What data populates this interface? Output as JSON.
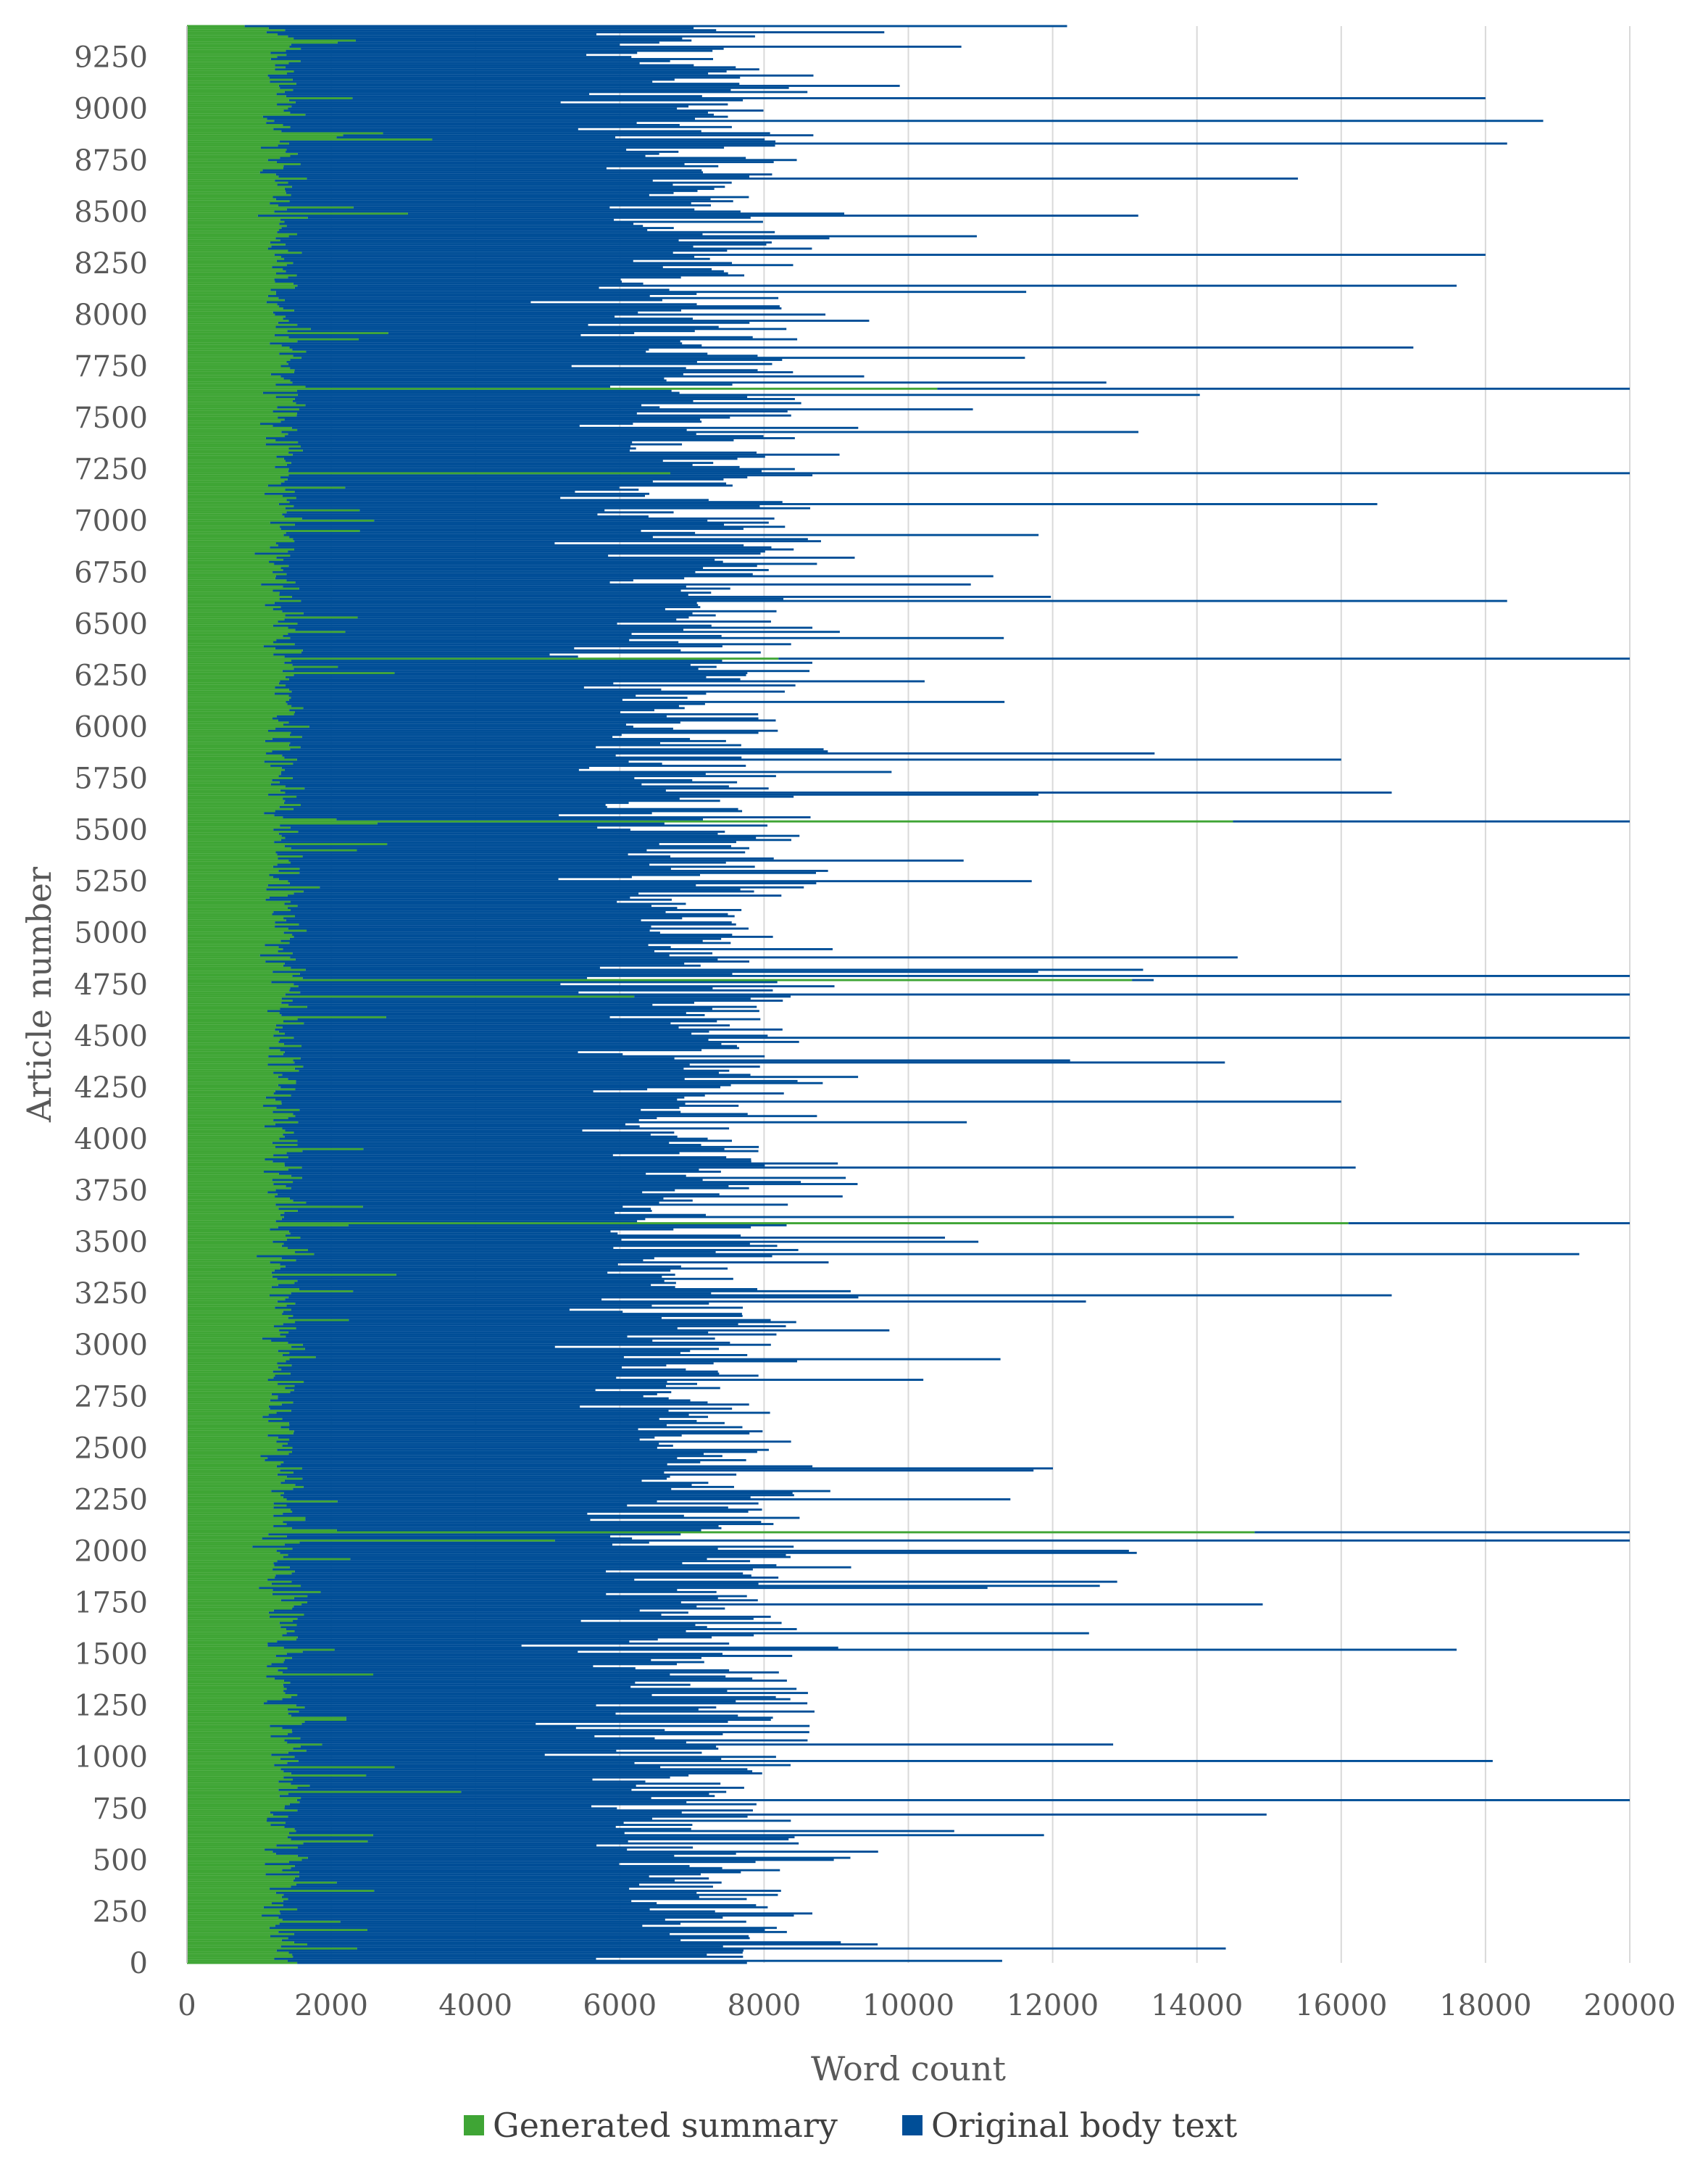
{
  "chart_data": {
    "type": "bar",
    "orientation": "horizontal",
    "stacked": true,
    "xlabel": "Word count",
    "ylabel": "Article number",
    "xlim": [
      0,
      20000
    ],
    "x_ticks": [
      0,
      2000,
      4000,
      6000,
      8000,
      10000,
      12000,
      14000,
      16000,
      18000,
      20000
    ],
    "x_tick_labels": [
      "0",
      "2000",
      "4000",
      "6000",
      "8000",
      "10000",
      "12000",
      "14000",
      "16000",
      "18000",
      "20000"
    ],
    "ylim": [
      0,
      9400
    ],
    "y_ticks": [
      0,
      250,
      500,
      750,
      1000,
      1250,
      1500,
      1750,
      2000,
      2250,
      2500,
      2750,
      3000,
      3250,
      3500,
      3750,
      4000,
      4250,
      4500,
      4750,
      5000,
      5250,
      5500,
      5750,
      6000,
      6250,
      6500,
      6750,
      7000,
      7250,
      7500,
      7750,
      8000,
      8250,
      8500,
      8750,
      9000,
      9250
    ],
    "y_tick_labels": [
      "0",
      "250",
      "500",
      "750",
      "1000",
      "1250",
      "1500",
      "1750",
      "2000",
      "2250",
      "2500",
      "2750",
      "3000",
      "3250",
      "3500",
      "3750",
      "4000",
      "4250",
      "4500",
      "4750",
      "5000",
      "5250",
      "5500",
      "5750",
      "6000",
      "6250",
      "6500",
      "6750",
      "7000",
      "7250",
      "7500",
      "7750",
      "8000",
      "8250",
      "8500",
      "8750",
      "9000",
      "9250"
    ],
    "grid": "vertical",
    "legend_position": "bottom",
    "series": [
      {
        "name": "Generated summary",
        "color": "#3fa535",
        "typical_range": [
          800,
          3000
        ],
        "notable_values": [
          {
            "article": 9400,
            "value": 800
          },
          {
            "article": 8850,
            "value": 3400
          },
          {
            "article": 7640,
            "value": 10400
          },
          {
            "article": 7230,
            "value": 6700
          },
          {
            "article": 6330,
            "value": 8200
          },
          {
            "article": 5540,
            "value": 14500
          },
          {
            "article": 4770,
            "value": 13100
          },
          {
            "article": 4690,
            "value": 6200
          },
          {
            "article": 3590,
            "value": 16100
          },
          {
            "article": 2090,
            "value": 14800
          },
          {
            "article": 2050,
            "value": 5100
          },
          {
            "article": 830,
            "value": 3800
          }
        ]
      },
      {
        "name": "Original body text",
        "color": "#004e97",
        "typical_range": [
          5000,
          12000
        ],
        "notable_values": [
          {
            "article": 9400,
            "value": 12200
          },
          {
            "article": 9050,
            "value": 18000
          },
          {
            "article": 8940,
            "value": 18800
          },
          {
            "article": 8830,
            "value": 18300
          },
          {
            "article": 8660,
            "value": 15400
          },
          {
            "article": 8290,
            "value": 18000
          },
          {
            "article": 8140,
            "value": 17600
          },
          {
            "article": 7840,
            "value": 17000
          },
          {
            "article": 7640,
            "value": 20000
          },
          {
            "article": 7230,
            "value": 20000
          },
          {
            "article": 7080,
            "value": 16500
          },
          {
            "article": 6610,
            "value": 18300
          },
          {
            "article": 6330,
            "value": 20000
          },
          {
            "article": 5840,
            "value": 16000
          },
          {
            "article": 5680,
            "value": 16700
          },
          {
            "article": 5540,
            "value": 20000
          },
          {
            "article": 4790,
            "value": 20000
          },
          {
            "article": 4700,
            "value": 20000
          },
          {
            "article": 4490,
            "value": 20000
          },
          {
            "article": 4180,
            "value": 16000
          },
          {
            "article": 3860,
            "value": 16200
          },
          {
            "article": 3590,
            "value": 20000
          },
          {
            "article": 3440,
            "value": 19300
          },
          {
            "article": 3240,
            "value": 16700
          },
          {
            "article": 2090,
            "value": 20000
          },
          {
            "article": 2050,
            "value": 20000
          },
          {
            "article": 1520,
            "value": 17600
          },
          {
            "article": 980,
            "value": 18100
          },
          {
            "article": 790,
            "value": 20000
          },
          {
            "article": 70,
            "value": 14400
          },
          {
            "article": 10,
            "value": 11300
          }
        ]
      }
    ]
  }
}
